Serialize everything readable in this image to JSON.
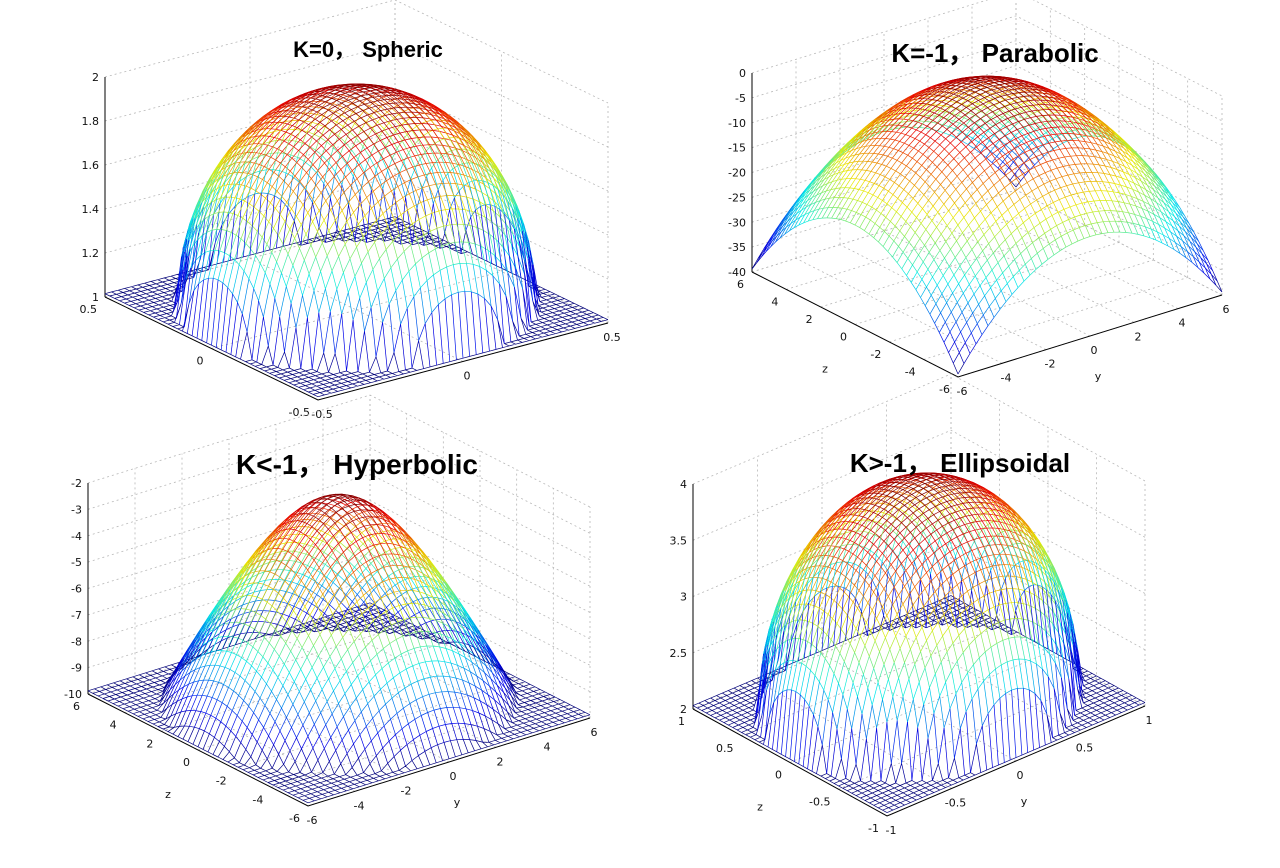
{
  "chart_data": [
    {
      "type": "surface-mesh",
      "title": "K=0， Spheric",
      "surface": "sphere",
      "zticks": [
        "1",
        "1.2",
        "1.4",
        "1.6",
        "1.8",
        "2"
      ],
      "zlim": [
        1,
        2
      ],
      "xticks": [
        "0.5",
        "0",
        "-0.5"
      ],
      "yticks": [
        "-0.5",
        "0",
        "0.5"
      ],
      "xlabel": "",
      "ylabel": "",
      "grid": true,
      "colormap": "jet"
    },
    {
      "type": "surface-mesh",
      "title": "K=-1， Parabolic",
      "surface": "paraboloid",
      "zticks": [
        "-40",
        "-35",
        "-30",
        "-25",
        "-20",
        "-15",
        "-10",
        "-5",
        "0"
      ],
      "zlim": [
        -40,
        0
      ],
      "xticks": [
        "6",
        "4",
        "2",
        "0",
        "-2",
        "-4",
        "-6"
      ],
      "yticks": [
        "-6",
        "-4",
        "-2",
        "0",
        "2",
        "4",
        "6"
      ],
      "xlabel": "z",
      "ylabel": "y",
      "grid": true,
      "colormap": "jet"
    },
    {
      "type": "surface-mesh",
      "title": "K<-1， Hyperbolic",
      "surface": "hyperboloid",
      "zticks": [
        "-10",
        "-9",
        "-8",
        "-7",
        "-6",
        "-5",
        "-4",
        "-3",
        "-2"
      ],
      "zlim": [
        -10,
        -2
      ],
      "xticks": [
        "6",
        "4",
        "2",
        "0",
        "-2",
        "-4",
        "-6"
      ],
      "yticks": [
        "-6",
        "-4",
        "-2",
        "0",
        "2",
        "4",
        "6"
      ],
      "xlabel": "z",
      "ylabel": "y",
      "grid": true,
      "colormap": "jet"
    },
    {
      "type": "surface-mesh",
      "title": "K>-1， Ellipsoidal",
      "surface": "ellipsoid",
      "zticks": [
        "2",
        "2.5",
        "3",
        "3.5",
        "4"
      ],
      "zlim": [
        2,
        4
      ],
      "xticks": [
        "1",
        "0.5",
        "0",
        "-0.5",
        "-1"
      ],
      "yticks": [
        "-1",
        "-0.5",
        "0",
        "0.5",
        "1"
      ],
      "xlabel": "z",
      "ylabel": "y",
      "grid": true,
      "colormap": "jet"
    }
  ]
}
